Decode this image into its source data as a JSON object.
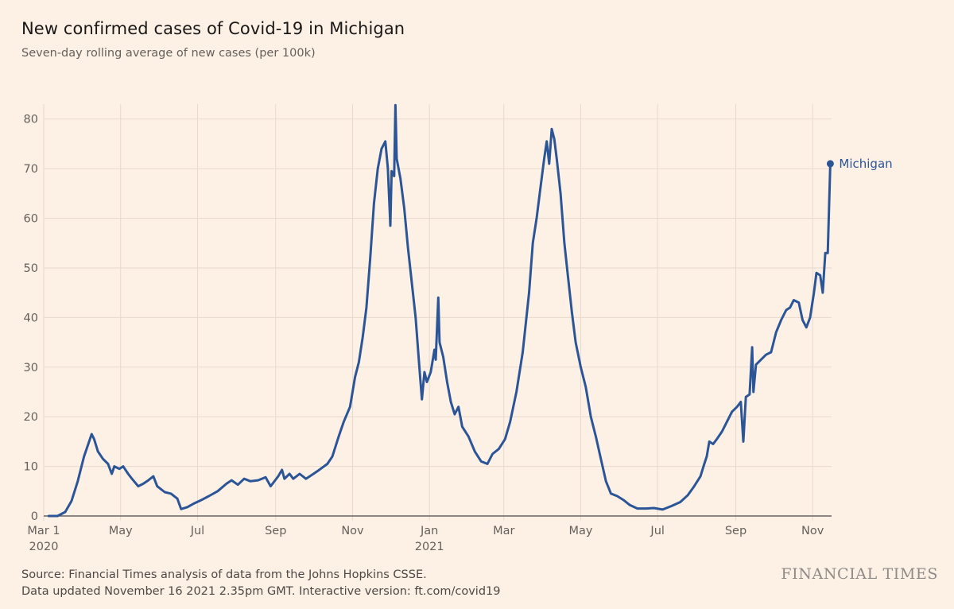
{
  "header": {
    "title": "New confirmed cases of Covid-19 in Michigan",
    "subtitle": "Seven-day rolling average of new cases (per 100k)"
  },
  "footer": {
    "source_line1": "Source: Financial Times analysis of data from the Johns Hopkins CSSE.",
    "source_line2": "Data updated November 16 2021 2.35pm GMT. Interactive version: ft.com/covid19",
    "brand": "FINANCIAL TIMES"
  },
  "colors": {
    "background": "#fdf1e6",
    "line": "#2b5596",
    "grid": "#e8d9cb"
  },
  "chart_data": {
    "type": "line",
    "title": "New confirmed cases of Covid-19 in Michigan",
    "subtitle": "Seven-day rolling average of new cases (per 100k)",
    "ylim": [
      0,
      83
    ],
    "yticks": [
      0,
      10,
      20,
      30,
      40,
      50,
      60,
      70,
      80
    ],
    "xlim": [
      "2020-03-01",
      "2021-11-16"
    ],
    "xticks": [
      {
        "date": "2020-03-01",
        "label": "Mar 1",
        "sublabel": "2020"
      },
      {
        "date": "2020-05-01",
        "label": "May",
        "sublabel": ""
      },
      {
        "date": "2020-07-01",
        "label": "Jul",
        "sublabel": ""
      },
      {
        "date": "2020-09-01",
        "label": "Sep",
        "sublabel": ""
      },
      {
        "date": "2020-11-01",
        "label": "Nov",
        "sublabel": ""
      },
      {
        "date": "2021-01-01",
        "label": "Jan",
        "sublabel": "2021"
      },
      {
        "date": "2021-03-01",
        "label": "Mar",
        "sublabel": ""
      },
      {
        "date": "2021-05-01",
        "label": "May",
        "sublabel": ""
      },
      {
        "date": "2021-07-01",
        "label": "Jul",
        "sublabel": ""
      },
      {
        "date": "2021-09-01",
        "label": "Sep",
        "sublabel": ""
      },
      {
        "date": "2021-11-01",
        "label": "Nov",
        "sublabel": ""
      }
    ],
    "grid": true,
    "series": [
      {
        "name": "Michigan",
        "end_value": 71,
        "points": [
          [
            "2020-03-05",
            0
          ],
          [
            "2020-03-12",
            0
          ],
          [
            "2020-03-18",
            0.8
          ],
          [
            "2020-03-23",
            3
          ],
          [
            "2020-03-28",
            7
          ],
          [
            "2020-04-02",
            12
          ],
          [
            "2020-04-06",
            15
          ],
          [
            "2020-04-08",
            16.5
          ],
          [
            "2020-04-10",
            15.5
          ],
          [
            "2020-04-13",
            13
          ],
          [
            "2020-04-17",
            11.5
          ],
          [
            "2020-04-21",
            10.5
          ],
          [
            "2020-04-24",
            8.5
          ],
          [
            "2020-04-26",
            10
          ],
          [
            "2020-04-30",
            9.5
          ],
          [
            "2020-05-03",
            10
          ],
          [
            "2020-05-07",
            8.5
          ],
          [
            "2020-05-10",
            7.5
          ],
          [
            "2020-05-15",
            6
          ],
          [
            "2020-05-19",
            6.5
          ],
          [
            "2020-05-23",
            7.2
          ],
          [
            "2020-05-27",
            8
          ],
          [
            "2020-05-30",
            6
          ],
          [
            "2020-06-05",
            4.8
          ],
          [
            "2020-06-10",
            4.5
          ],
          [
            "2020-06-15",
            3.5
          ],
          [
            "2020-06-18",
            1.4
          ],
          [
            "2020-06-23",
            1.8
          ],
          [
            "2020-06-28",
            2.5
          ],
          [
            "2020-07-04",
            3.2
          ],
          [
            "2020-07-10",
            4
          ],
          [
            "2020-07-17",
            5
          ],
          [
            "2020-07-24",
            6.5
          ],
          [
            "2020-07-28",
            7.2
          ],
          [
            "2020-08-02",
            6.3
          ],
          [
            "2020-08-07",
            7.5
          ],
          [
            "2020-08-12",
            7
          ],
          [
            "2020-08-18",
            7.2
          ],
          [
            "2020-08-24",
            7.8
          ],
          [
            "2020-08-28",
            6
          ],
          [
            "2020-09-03",
            8
          ],
          [
            "2020-09-06",
            9.3
          ],
          [
            "2020-09-08",
            7.5
          ],
          [
            "2020-09-12",
            8.5
          ],
          [
            "2020-09-15",
            7.5
          ],
          [
            "2020-09-20",
            8.5
          ],
          [
            "2020-09-25",
            7.5
          ],
          [
            "2020-10-01",
            8.5
          ],
          [
            "2020-10-05",
            9.2
          ],
          [
            "2020-10-12",
            10.5
          ],
          [
            "2020-10-16",
            12
          ],
          [
            "2020-10-21",
            16
          ],
          [
            "2020-10-25",
            19
          ],
          [
            "2020-10-30",
            22
          ],
          [
            "2020-11-03",
            28
          ],
          [
            "2020-11-06",
            31
          ],
          [
            "2020-11-09",
            36
          ],
          [
            "2020-11-12",
            42
          ],
          [
            "2020-11-15",
            52
          ],
          [
            "2020-11-18",
            63
          ],
          [
            "2020-11-21",
            70
          ],
          [
            "2020-11-24",
            74
          ],
          [
            "2020-11-27",
            75.5
          ],
          [
            "2020-11-29",
            70
          ],
          [
            "2020-12-01",
            58.5
          ],
          [
            "2020-12-02",
            69.5
          ],
          [
            "2020-12-04",
            68.5
          ],
          [
            "2020-12-05",
            82.8
          ],
          [
            "2020-12-06",
            72
          ],
          [
            "2020-12-09",
            68
          ],
          [
            "2020-12-12",
            62
          ],
          [
            "2020-12-15",
            54
          ],
          [
            "2020-12-18",
            47
          ],
          [
            "2020-12-21",
            40
          ],
          [
            "2020-12-24",
            30
          ],
          [
            "2020-12-26",
            23.5
          ],
          [
            "2020-12-28",
            29
          ],
          [
            "2020-12-30",
            27
          ],
          [
            "2021-01-02",
            29
          ],
          [
            "2021-01-05",
            33.5
          ],
          [
            "2021-01-06",
            31.5
          ],
          [
            "2021-01-08",
            44
          ],
          [
            "2021-01-09",
            35
          ],
          [
            "2021-01-12",
            32
          ],
          [
            "2021-01-15",
            27
          ],
          [
            "2021-01-18",
            23
          ],
          [
            "2021-01-21",
            20.5
          ],
          [
            "2021-01-24",
            22
          ],
          [
            "2021-01-27",
            18
          ],
          [
            "2021-02-01",
            16
          ],
          [
            "2021-02-06",
            13
          ],
          [
            "2021-02-11",
            11
          ],
          [
            "2021-02-16",
            10.5
          ],
          [
            "2021-02-20",
            12.5
          ],
          [
            "2021-02-25",
            13.5
          ],
          [
            "2021-03-02",
            15.5
          ],
          [
            "2021-03-06",
            19
          ],
          [
            "2021-03-11",
            25
          ],
          [
            "2021-03-16",
            33
          ],
          [
            "2021-03-21",
            45
          ],
          [
            "2021-03-24",
            55
          ],
          [
            "2021-03-27",
            60
          ],
          [
            "2021-03-30",
            66
          ],
          [
            "2021-04-02",
            72
          ],
          [
            "2021-04-04",
            75.5
          ],
          [
            "2021-04-06",
            71
          ],
          [
            "2021-04-08",
            78
          ],
          [
            "2021-04-10",
            76
          ],
          [
            "2021-04-12",
            72
          ],
          [
            "2021-04-15",
            65
          ],
          [
            "2021-04-18",
            55
          ],
          [
            "2021-04-21",
            48
          ],
          [
            "2021-04-24",
            41
          ],
          [
            "2021-04-27",
            35
          ],
          [
            "2021-05-01",
            30
          ],
          [
            "2021-05-05",
            26
          ],
          [
            "2021-05-09",
            20
          ],
          [
            "2021-05-13",
            16
          ],
          [
            "2021-05-17",
            11.5
          ],
          [
            "2021-05-21",
            7
          ],
          [
            "2021-05-25",
            4.5
          ],
          [
            "2021-05-30",
            4
          ],
          [
            "2021-06-04",
            3.2
          ],
          [
            "2021-06-09",
            2.2
          ],
          [
            "2021-06-15",
            1.5
          ],
          [
            "2021-06-22",
            1.5
          ],
          [
            "2021-06-28",
            1.6
          ],
          [
            "2021-07-05",
            1.3
          ],
          [
            "2021-07-12",
            2
          ],
          [
            "2021-07-19",
            2.8
          ],
          [
            "2021-07-25",
            4.2
          ],
          [
            "2021-07-30",
            6
          ],
          [
            "2021-08-04",
            8
          ],
          [
            "2021-08-07",
            10.5
          ],
          [
            "2021-08-09",
            12
          ],
          [
            "2021-08-11",
            15
          ],
          [
            "2021-08-14",
            14.5
          ],
          [
            "2021-08-17",
            15.5
          ],
          [
            "2021-08-21",
            17
          ],
          [
            "2021-08-25",
            19
          ],
          [
            "2021-08-29",
            21
          ],
          [
            "2021-09-02",
            22
          ],
          [
            "2021-09-05",
            23
          ],
          [
            "2021-09-07",
            15
          ],
          [
            "2021-09-09",
            24
          ],
          [
            "2021-09-12",
            24.5
          ],
          [
            "2021-09-14",
            34
          ],
          [
            "2021-09-15",
            25
          ],
          [
            "2021-09-17",
            30.5
          ],
          [
            "2021-09-21",
            31.5
          ],
          [
            "2021-09-25",
            32.5
          ],
          [
            "2021-09-29",
            33
          ],
          [
            "2021-10-03",
            37
          ],
          [
            "2021-10-07",
            39.5
          ],
          [
            "2021-10-11",
            41.5
          ],
          [
            "2021-10-14",
            42
          ],
          [
            "2021-10-17",
            43.5
          ],
          [
            "2021-10-21",
            43
          ],
          [
            "2021-10-24",
            39.5
          ],
          [
            "2021-10-27",
            38
          ],
          [
            "2021-10-30",
            40
          ],
          [
            "2021-11-02",
            45
          ],
          [
            "2021-11-04",
            49
          ],
          [
            "2021-11-07",
            48.5
          ],
          [
            "2021-11-09",
            45
          ],
          [
            "2021-11-11",
            53
          ],
          [
            "2021-11-13",
            53
          ],
          [
            "2021-11-15",
            71
          ]
        ]
      }
    ]
  }
}
